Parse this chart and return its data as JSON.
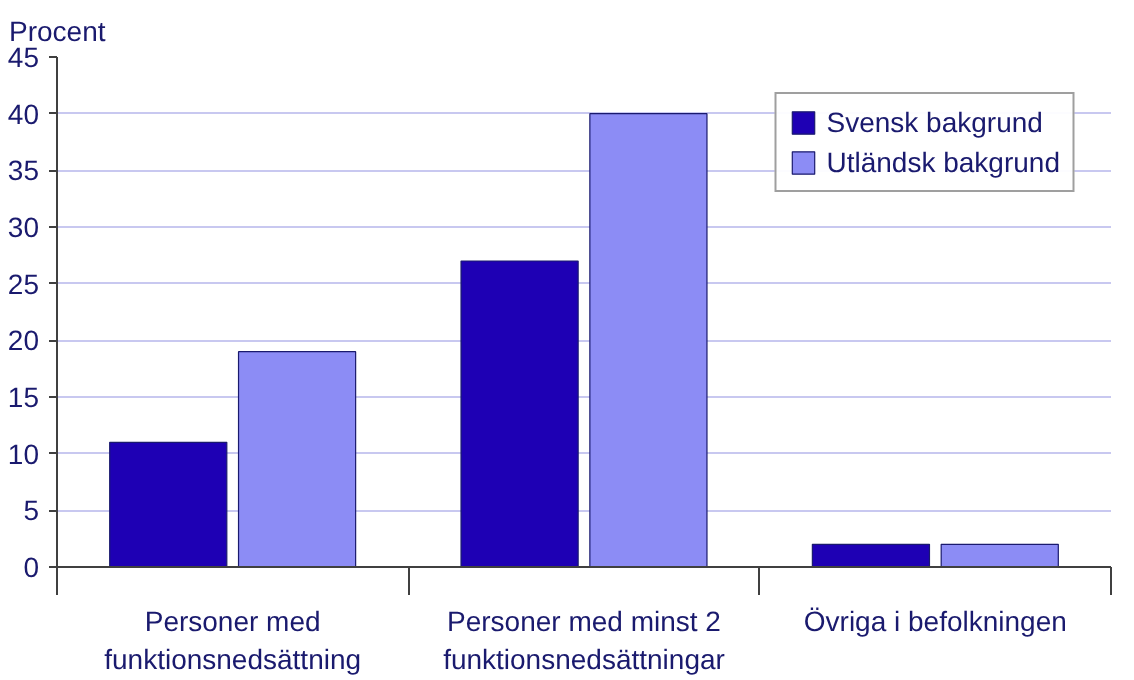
{
  "chart_data": {
    "type": "bar",
    "ylabel": "Procent",
    "categories": [
      "Personer med funktionsnedsättning",
      "Personer med minst 2 funktionsnedsättningar",
      "Övriga i befolkningen"
    ],
    "series": [
      {
        "name": "Svensk bakgrund",
        "color": "#1e00b4",
        "values": [
          11,
          27,
          2
        ]
      },
      {
        "name": "Utländsk bakgrund",
        "color": "#8c8cf5",
        "values": [
          19,
          40,
          2
        ]
      }
    ],
    "ylim": [
      0,
      45
    ],
    "yticks": [
      0,
      5,
      10,
      15,
      20,
      25,
      30,
      35,
      40,
      45
    ],
    "grid": "y",
    "legend": "top right"
  }
}
